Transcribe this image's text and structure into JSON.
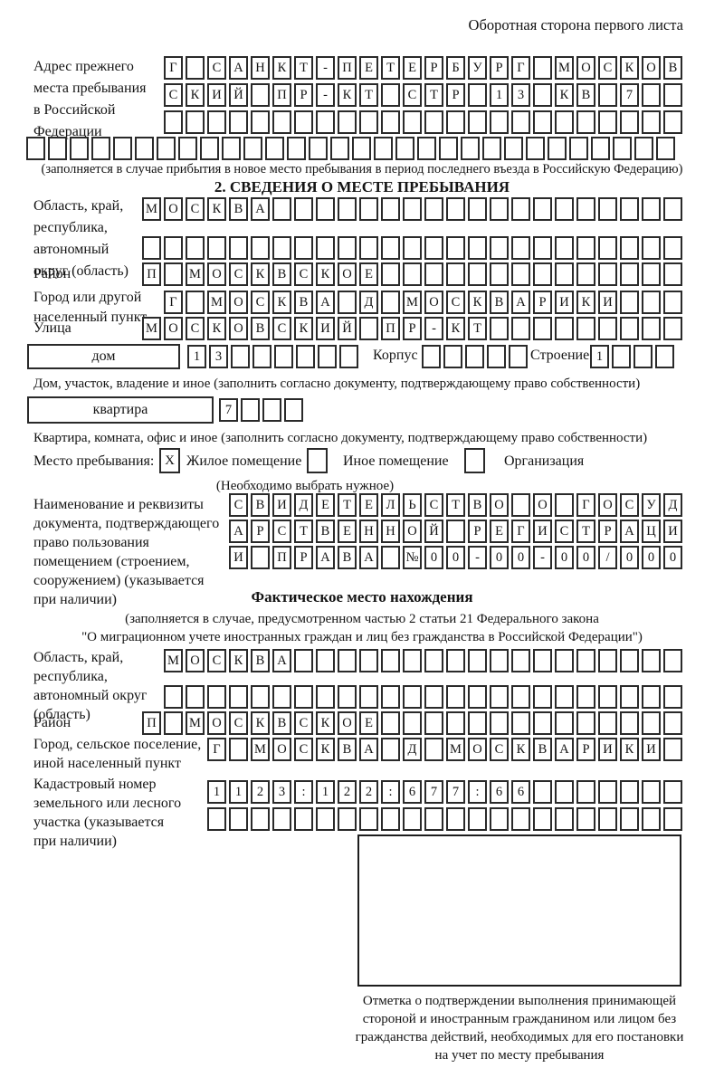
{
  "header": {
    "note": "Оборотная сторона первого листа"
  },
  "prev_address": {
    "label": "Адрес прежнего\nместа пребывания\nв Российской\nФедерации",
    "rows": [
      {
        "value": "Г САНКТ-ПЕТЕРБУРГ МОСКОВ",
        "count": 24
      },
      {
        "value": "СКИЙ ПР-КТ СТР 13 КВ 7",
        "count": 24
      },
      {
        "value": "",
        "count": 24
      },
      {
        "value": "",
        "count": 30
      }
    ],
    "note": "(заполняется в случае прибытия в новое место пребывания в период последнего въезда в Российскую Федерацию)"
  },
  "section2": {
    "title": "2. СВЕДЕНИЯ О МЕСТЕ ПРЕБЫВАНИЯ",
    "region": {
      "label": "Область, край,\nреспублика,\nавтономный\nокруг (область)",
      "rows": [
        {
          "value": "МОСКВА",
          "count": 25
        },
        {
          "value": "",
          "count": 25
        }
      ]
    },
    "district": {
      "label": "Район",
      "row": {
        "value": "П МОСКВСКОЕ",
        "count": 25
      }
    },
    "city": {
      "label": "Город или другой\nнаселенный пункт",
      "row": {
        "value": "Г МОСКВА Д МОСКВАРИКИ",
        "count": 24
      }
    },
    "street": {
      "label": "Улица",
      "row": {
        "value": "МОСКОВСКИЙ ПР-КТ",
        "count": 25
      }
    },
    "house": {
      "box_label": "дом",
      "row": {
        "value": "13",
        "count": 8
      },
      "korpus_label": "Корпус",
      "korpus_row": {
        "value": "",
        "count": 5
      },
      "stroenie_label": "Строение",
      "stroenie_row": {
        "value": "1",
        "count": 4
      },
      "caption": "Дом, участок, владение и иное (заполнить согласно документу, подтверждающему право собственности)"
    },
    "apartment": {
      "box_label": "квартира",
      "row": {
        "value": "7",
        "count": 4
      },
      "caption": "Квартира, комната, офис и иное (заполнить согласно документу, подтверждающему право собственности)"
    },
    "stay_type": {
      "label": "Место пребывания:",
      "options": [
        {
          "label": "Жилое помещение",
          "checked": "X"
        },
        {
          "label": "Иное помещение",
          "checked": ""
        },
        {
          "label": "Организация",
          "checked": ""
        }
      ],
      "note": "(Необходимо выбрать нужное)"
    },
    "document_info": {
      "label": "Наименование и реквизиты\nдокумента, подтверждающего\nправо пользования\nпомещением (строением,\nсооружением) (указывается\nпри наличии)",
      "rows": [
        {
          "value": "СВИДЕТЕЛЬСТВО О ГОСУД",
          "count": 21
        },
        {
          "value": "АРСТВЕННОЙ РЕГИСТРАЦИ",
          "count": 21
        },
        {
          "value": "И ПРАВА №00-00-00/000",
          "count": 21
        }
      ]
    }
  },
  "actual_location": {
    "title": "Фактическое место нахождения",
    "note_line1": "(заполняется в случае, предусмотренном частью 2 статьи 21 Федерального закона",
    "note_line2": "\"О миграционном учете иностранных граждан и лиц без гражданства в Российской Федерации\")",
    "region": {
      "label": "Область, край,\nреспублика,\nавтономный округ\n(область)",
      "rows": [
        {
          "value": "МОСКВА",
          "count": 24
        },
        {
          "value": "",
          "count": 24
        }
      ]
    },
    "district": {
      "label": "Район",
      "row": {
        "value": "П МОСКВСКОЕ",
        "count": 25
      }
    },
    "city": {
      "label": "Город, сельское поселение,\nиной населенный пункт",
      "row": {
        "value": "Г МОСКВА Д МОСКВАРИКИ",
        "count": 22
      }
    },
    "cadastre": {
      "label": "Кадастровый номер\nземельного или лесного\nучастка (указывается\nпри наличии)",
      "rows": [
        {
          "value": "1123:122:677:66",
          "count": 22
        },
        {
          "value": "",
          "count": 22
        }
      ]
    }
  },
  "stamp": {
    "caption": "Отметка о подтверждении выполнения принимающей\nстороной и иностранным гражданином или лицом без\nгражданства действий, необходимых для его постановки\nна учет по месту пребывания"
  },
  "colors": {
    "ink": "#141414",
    "cell_border": "#2a2a2a",
    "background": "#ffffff"
  }
}
